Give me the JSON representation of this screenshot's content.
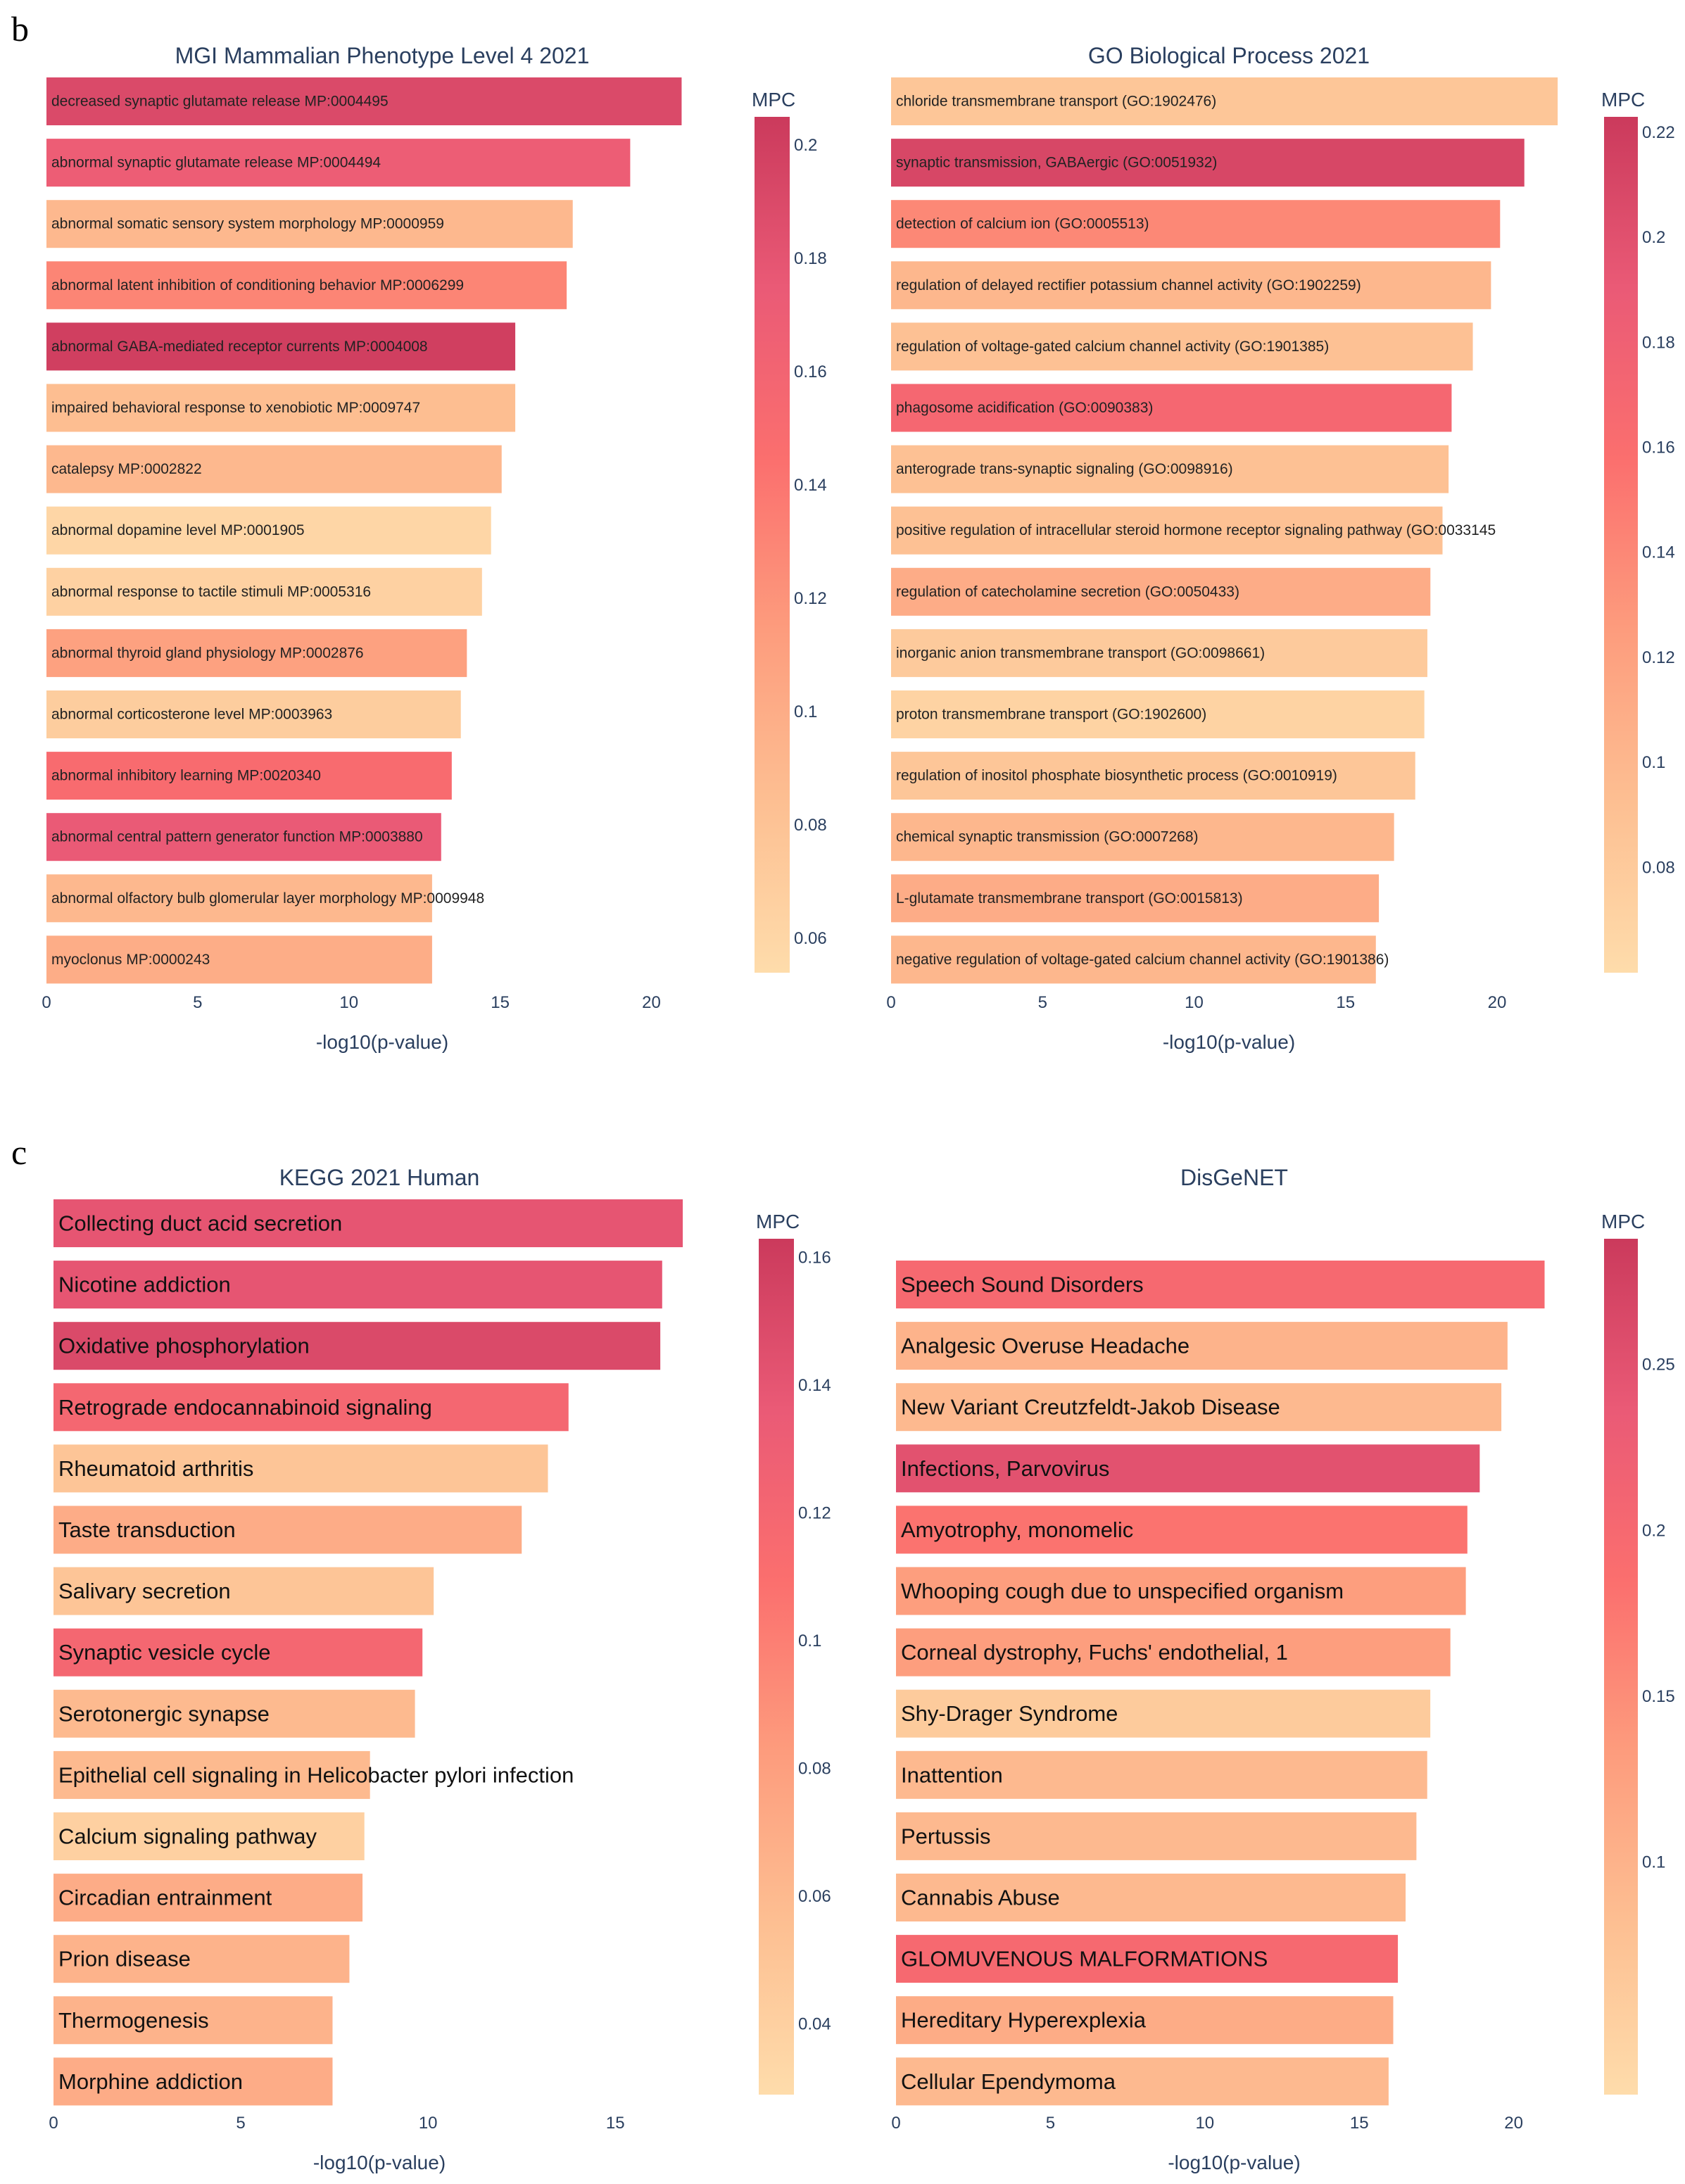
{
  "figure": {
    "panel_b_label": "b",
    "panel_c_label": "c"
  },
  "colorscale": [
    "#fedcab",
    "#fdbf92",
    "#fd9c7d",
    "#fb6f6e",
    "#ea5a76",
    "#cb3a5c"
  ],
  "chart_data": [
    {
      "type": "bar",
      "orientation": "horizontal",
      "title": "MGI Mammalian Phenotype Level 4 2021",
      "xlabel": "-log10(p-value)",
      "xticks": [
        "0",
        "5",
        "10",
        "15",
        "20"
      ],
      "xlim": [
        0,
        22.2
      ],
      "colorbar": {
        "title": "MPC",
        "ticks": [
          0.06,
          0.08,
          0.1,
          0.12,
          0.14,
          0.16,
          0.18,
          0.2
        ],
        "tick_labels": [
          "0.06",
          "0.08",
          "0.1",
          "0.12",
          "0.14",
          "0.16",
          "0.18",
          "0.2"
        ],
        "range": [
          0.054,
          0.205
        ]
      },
      "categories": [
        "decreased synaptic glutamate release MP:0004495",
        "abnormal synaptic glutamate release MP:0004494",
        "abnormal somatic sensory system morphology MP:0000959",
        "abnormal latent inhibition of conditioning behavior MP:0006299",
        "abnormal GABA-mediated receptor currents MP:0004008",
        "impaired behavioral response to xenobiotic MP:0009747",
        "catalepsy MP:0002822",
        "abnormal dopamine level MP:0001905",
        "abnormal response to tactile stimuli MP:0005316",
        "abnormal thyroid gland physiology MP:0002876",
        "abnormal corticosterone level MP:0003963",
        "abnormal inhibitory learning MP:0020340",
        "abnormal central pattern generator function MP:0003880",
        "abnormal olfactory bulb glomerular layer morphology MP:0009948",
        "myoclonus MP:0000243"
      ],
      "values": [
        21.0,
        19.3,
        17.4,
        17.2,
        15.5,
        15.5,
        15.05,
        14.7,
        14.4,
        13.9,
        13.7,
        13.4,
        13.05,
        12.75,
        12.75
      ],
      "mpc": [
        0.19,
        0.17,
        0.09,
        0.13,
        0.2,
        0.085,
        0.09,
        0.06,
        0.065,
        0.11,
        0.07,
        0.15,
        0.175,
        0.09,
        0.1
      ]
    },
    {
      "type": "bar",
      "orientation": "horizontal",
      "title": "GO Biological Process 2021",
      "xlabel": "-log10(p-value)",
      "xticks": [
        "0",
        "5",
        "10",
        "15",
        "20"
      ],
      "xlim": [
        0,
        22.3
      ],
      "colorbar": {
        "title": "MPC",
        "ticks": [
          0.08,
          0.1,
          0.12,
          0.14,
          0.16,
          0.18,
          0.2,
          0.22
        ],
        "tick_labels": [
          "0.08",
          "0.1",
          "0.12",
          "0.14",
          "0.16",
          "0.18",
          "0.2",
          "0.22"
        ],
        "range": [
          0.06,
          0.223
        ]
      },
      "categories": [
        "chloride transmembrane transport (GO:1902476)",
        "synaptic transmission, GABAergic (GO:0051932)",
        "detection of calcium ion (GO:0005513)",
        "regulation of delayed rectifier potassium channel activity (GO:1902259)",
        "regulation of voltage-gated calcium channel activity (GO:1901385)",
        "phagosome acidification (GO:0090383)",
        "anterograde trans-synaptic signaling (GO:0098916)",
        "positive regulation of intracellular steroid hormone receptor signaling pathway (GO:0033145",
        "regulation of catecholamine secretion (GO:0050433)",
        "inorganic anion transmembrane transport (GO:0098661)",
        "proton transmembrane transport (GO:1902600)",
        "regulation of inositol phosphate biosynthetic process (GO:0010919)",
        "chemical synaptic transmission (GO:0007268)",
        "L-glutamate transmembrane transport (GO:0015813)",
        "negative regulation of voltage-gated calcium channel activity (GO:1901386)"
      ],
      "values": [
        22.0,
        20.9,
        20.1,
        19.8,
        19.2,
        18.5,
        18.4,
        18.2,
        17.8,
        17.7,
        17.6,
        17.3,
        16.6,
        16.1,
        16.0
      ],
      "mpc": [
        0.085,
        0.21,
        0.14,
        0.1,
        0.09,
        0.17,
        0.09,
        0.09,
        0.11,
        0.08,
        0.07,
        0.085,
        0.1,
        0.11,
        0.1
      ]
    },
    {
      "type": "bar",
      "orientation": "horizontal",
      "title": "KEGG 2021 Human",
      "xlabel": "-log10(p-value)",
      "xticks": [
        "0",
        "5",
        "10",
        "15"
      ],
      "xlim": [
        0,
        17.4
      ],
      "colorbar": {
        "title": "MPC",
        "ticks": [
          0.04,
          0.06,
          0.08,
          0.1,
          0.12,
          0.14,
          0.16
        ],
        "tick_labels": [
          "0.04",
          "0.06",
          "0.08",
          "0.1",
          "0.12",
          "0.14",
          "0.16"
        ],
        "range": [
          0.029,
          0.163
        ]
      },
      "categories": [
        "Collecting duct acid secretion",
        "Nicotine addiction",
        "Oxidative phosphorylation",
        "Retrograde endocannabinoid signaling",
        "Rheumatoid arthritis",
        "Taste transduction",
        "Salivary secretion",
        "Synaptic vesicle cycle",
        "Serotonergic synapse",
        "Epithelial cell signaling in Helicobacter pylori infection",
        "Calcium signaling pathway",
        "Circadian entrainment",
        "Prion disease",
        "Thermogenesis",
        "Morphine addiction"
      ],
      "values": [
        16.8,
        16.25,
        16.2,
        13.75,
        13.2,
        12.5,
        10.15,
        9.85,
        9.65,
        8.45,
        8.3,
        8.25,
        7.9,
        7.45,
        7.45
      ],
      "mpc": [
        0.14,
        0.14,
        0.15,
        0.12,
        0.05,
        0.07,
        0.05,
        0.12,
        0.06,
        0.06,
        0.04,
        0.07,
        0.065,
        0.065,
        0.07
      ]
    },
    {
      "type": "bar",
      "orientation": "horizontal",
      "title": "DisGeNET",
      "xlabel": "-log10(p-value)",
      "xticks": [
        "0",
        "5",
        "10",
        "15",
        "20"
      ],
      "xlim": [
        0,
        21.9
      ],
      "colorbar": {
        "title": "MPC",
        "ticks": [
          0.1,
          0.15,
          0.2,
          0.25
        ],
        "tick_labels": [
          "0.1",
          "0.15",
          "0.2",
          "0.25"
        ],
        "range": [
          0.03,
          0.288
        ]
      },
      "categories": [
        "Speech Sound Disorders",
        "Analgesic Overuse Headache",
        "New Variant Creutzfeldt-Jakob Disease",
        "Infections, Parvovirus",
        "Amyotrophy, monomelic",
        "Whooping cough due to unspecified organism",
        "Corneal dystrophy, Fuchs' endothelial, 1",
        "Shy-Drager Syndrome",
        "Inattention",
        "Pertussis",
        "Cannabis Abuse",
        "GLOMUVENOUS MALFORMATIONS",
        "Hereditary Hyperexplexia",
        "Cellular Ependymoma"
      ],
      "values": [
        21.0,
        19.8,
        19.6,
        18.9,
        18.5,
        18.45,
        17.95,
        17.3,
        17.2,
        16.85,
        16.5,
        16.25,
        16.1,
        15.95
      ],
      "mpc": [
        0.2,
        0.1,
        0.09,
        0.25,
        0.18,
        0.13,
        0.13,
        0.06,
        0.09,
        0.09,
        0.09,
        0.2,
        0.11,
        0.09
      ]
    }
  ]
}
